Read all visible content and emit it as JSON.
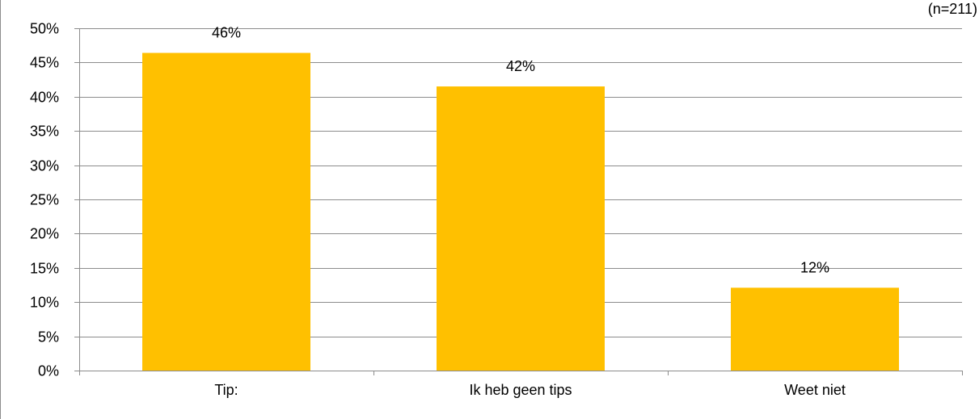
{
  "chart_data": {
    "type": "bar",
    "note": "(n=211)",
    "categories": [
      "Tip:",
      "Ik heb geen tips",
      "Weet niet"
    ],
    "values": [
      46.4,
      41.5,
      12.1
    ],
    "data_labels": [
      "46%",
      "42%",
      "12%"
    ],
    "ylim": [
      0,
      50
    ],
    "y_ticks": [
      0,
      5,
      10,
      15,
      20,
      25,
      30,
      35,
      40,
      45,
      50
    ],
    "y_tick_labels": [
      "0%",
      "5%",
      "10%",
      "15%",
      "20%",
      "25%",
      "30%",
      "35%",
      "40%",
      "45%",
      "50%"
    ],
    "grid": true,
    "legend": "none",
    "bar_color": "#FFC000"
  }
}
